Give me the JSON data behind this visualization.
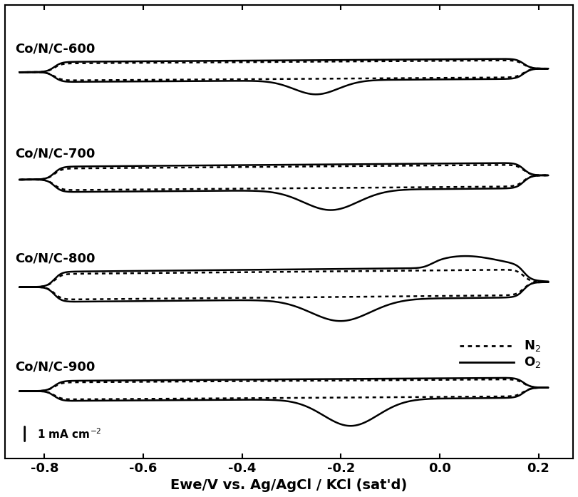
{
  "xlabel": "Ewe/V vs. Ag/AgCl / KCl (sat'd)",
  "xlim": [
    -0.88,
    0.27
  ],
  "xticks": [
    -0.8,
    -0.6,
    -0.4,
    -0.2,
    0.0,
    0.2
  ],
  "xticklabels": [
    "-0.8",
    "-0.6",
    "-0.4",
    "-0.2",
    "0.0",
    "0.2"
  ],
  "labels": [
    "Co/N/C-600",
    "Co/N/C-700",
    "Co/N/C-800",
    "Co/N/C-900"
  ],
  "background_color": "#ffffff",
  "fontsize_label": 14,
  "fontsize_tick": 13,
  "fontsize_panel": 13
}
